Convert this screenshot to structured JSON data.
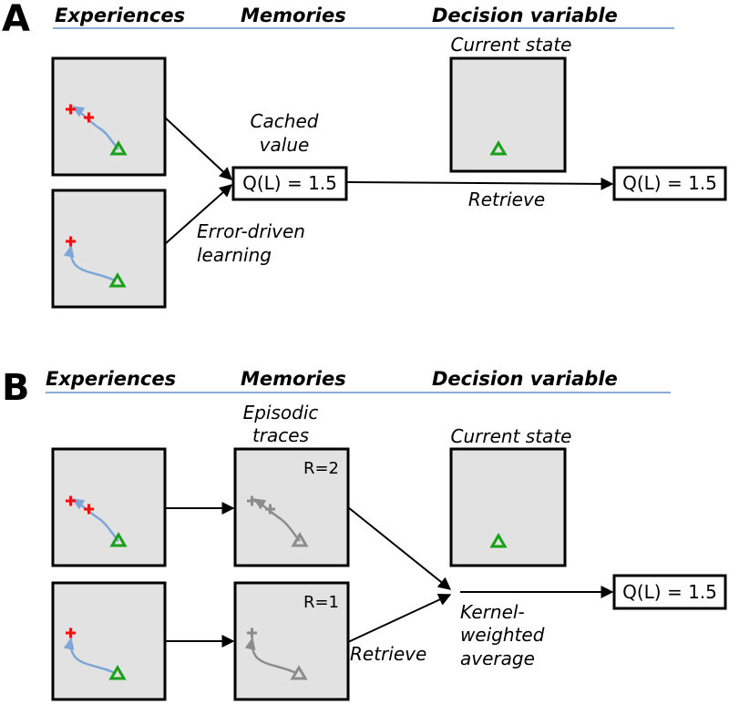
{
  "panel_a": {
    "letter": "A",
    "headers": {
      "experiences": "Experiences",
      "memories": "Memories",
      "decision": "Decision variable"
    },
    "current_state": "Current state",
    "cached_value_line1": "Cached",
    "cached_value_line2": "value",
    "q_value_memory": "Q(L) = 1.5",
    "q_value_output": "Q(L) = 1.5",
    "retrieve": "Retrieve",
    "error_line1": "Error-driven",
    "error_line2": "learning"
  },
  "panel_b": {
    "letter": "B",
    "headers": {
      "experiences": "Experiences",
      "memories": "Memories",
      "decision": "Decision variable"
    },
    "episodic_line1": "Episodic",
    "episodic_line2": "traces",
    "current_state": "Current state",
    "r_top": "R=2",
    "r_bottom": "R=1",
    "retrieve": "Retrieve",
    "kernel_line1": "Kernel-",
    "kernel_line2": "weighted",
    "kernel_line3": "average",
    "q_value_output": "Q(L) = 1.5"
  },
  "colors": {
    "header_rule": "#8aaed8",
    "panel_fill": "#e2e2e2",
    "trajectory": "#7ea6d6",
    "reward_marker": "#ee1111",
    "agent_marker": "#18a018",
    "faded": "#8c8c8c"
  },
  "icons": [
    "plus-marker",
    "triangle-marker",
    "arrow"
  ]
}
